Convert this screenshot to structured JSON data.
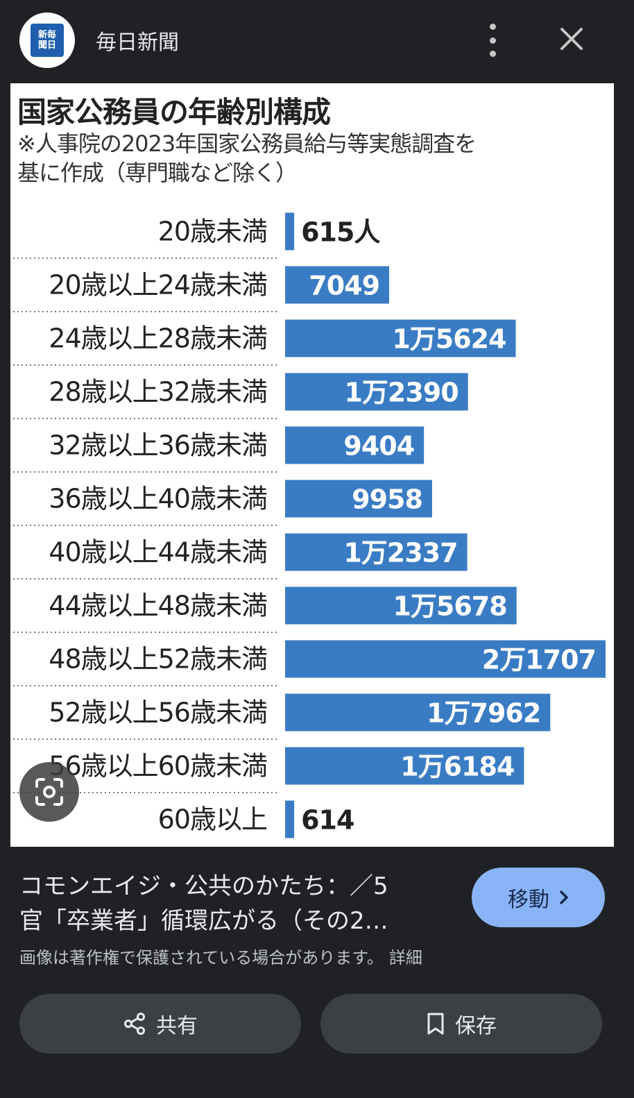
{
  "header": {
    "logo_text": "新毎\n聞日",
    "source_name": "毎日新聞"
  },
  "image": {
    "title": "国家公務員の年齢別構成",
    "note_line1": "※人事院の2023年国家公務員給与等実態調査を",
    "note_line2": "基に作成（専門職など除く）",
    "chart_data": {
      "type": "bar",
      "orientation": "horizontal",
      "title": "国家公務員の年齢別構成",
      "subtitle": "※人事院の2023年国家公務員給与等実態調査を基に作成（専門職など除く）",
      "categories": [
        "20歳未満",
        "20歳以上24歳未満",
        "24歳以上28歳未満",
        "28歳以上32歳未満",
        "32歳以上36歳未満",
        "36歳以上40歳未満",
        "40歳以上44歳未満",
        "44歳以上48歳未満",
        "48歳以上52歳未満",
        "52歳以上56歳未満",
        "56歳以上60歳未満",
        "60歳以上"
      ],
      "values": [
        615,
        7049,
        15624,
        12390,
        9404,
        9958,
        12337,
        15678,
        21707,
        17962,
        16184,
        614
      ],
      "value_labels": [
        "615人",
        "7049",
        "1万5624",
        "1万2390",
        "9404",
        "9958",
        "1万2337",
        "1万5678",
        "2万1707",
        "1万7962",
        "1万6184",
        "614"
      ],
      "bar_color": "#3a7cc4",
      "grid": false
    }
  },
  "caption": {
    "title_line1": "コモンエイジ・公共のかたち：／5",
    "title_line2": "官「卒業者」循環広がる（その2…",
    "visit_label": "移動",
    "copyright": "画像は著作権で保護されている場合があります。",
    "details_link": "詳細"
  },
  "actions": {
    "share_label": "共有",
    "save_label": "保存"
  },
  "icons": {
    "more": "more-vert-icon",
    "close": "close-icon",
    "lens": "lens-search-icon",
    "chevron": "chevron-right-icon",
    "share": "share-icon",
    "bookmark": "bookmark-icon"
  }
}
